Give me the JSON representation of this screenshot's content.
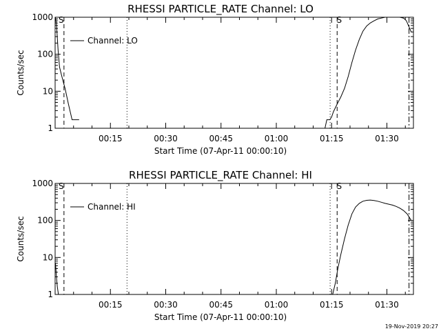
{
  "chart_data": [
    {
      "type": "line",
      "title": "RHESSI PARTICLE_RATE Channel: LO",
      "xlabel": "Start Time (07-Apr-11 00:00:10)",
      "ylabel": "Counts/sec",
      "y_scale": "log",
      "ylim": [
        1,
        1000
      ],
      "xlim_minutes": [
        0,
        97.2
      ],
      "x_tick_labels": [
        "00:15",
        "00:30",
        "00:45",
        "01:00",
        "01:15",
        "01:30"
      ],
      "x_tick_values_minutes": [
        15,
        30,
        45,
        60,
        75,
        90
      ],
      "y_tick_labels": [
        "1",
        "10",
        "100",
        "1000"
      ],
      "y_tick_values": [
        1,
        10,
        100,
        1000
      ],
      "legend": {
        "label": "Channel: LO",
        "placement": "top-left"
      },
      "marker_label": "S",
      "series": [
        {
          "values_time_minutes": [
            0.1,
            0.4,
            0.8,
            1.2,
            1.7,
            2.2,
            2.7,
            3.2,
            3.6,
            4.2,
            4.6,
            5.0,
            5.5,
            6.5
          ],
          "values_counts": [
            1000,
            600,
            130,
            45,
            28,
            18,
            12,
            7,
            4.5,
            2.5,
            1.7,
            1.7,
            1.7,
            1.7
          ]
        },
        {
          "values_time_minutes": [
            71.7,
            73.2,
            73.7,
            74.0,
            74.5,
            75.0,
            75.5,
            76.5,
            77.5,
            78.5,
            79.5,
            80.5,
            81.5,
            82.5,
            83.5,
            84.5,
            85.5,
            86.5,
            87.5,
            88.5,
            89.5,
            90.5,
            91.5,
            92.5,
            93.5,
            94.5,
            95.3,
            96.6
          ],
          "values_counts": [
            1.0,
            1.0,
            1.7,
            1.7,
            1.7,
            2.0,
            2.8,
            4.5,
            7.0,
            12,
            25,
            60,
            130,
            250,
            420,
            580,
            700,
            800,
            900,
            950,
            1000,
            1000,
            1000,
            1000,
            1000,
            950,
            800,
            400
          ]
        }
      ],
      "vlines": [
        {
          "time_minutes": 2.4,
          "style": "dashed"
        },
        {
          "time_minutes": 19.5,
          "style": "dotted"
        },
        {
          "time_minutes": 74.6,
          "style": "dotted"
        },
        {
          "time_minutes": 76.5,
          "style": "dashed"
        },
        {
          "time_minutes": 96.0,
          "style": "dashdot"
        }
      ]
    },
    {
      "type": "line",
      "title": "RHESSI PARTICLE_RATE Channel: HI",
      "xlabel": "Start Time (07-Apr-11 00:00:10)",
      "ylabel": "Counts/sec",
      "y_scale": "log",
      "ylim": [
        1,
        1000
      ],
      "xlim_minutes": [
        0,
        97.2
      ],
      "x_tick_labels": [
        "00:15",
        "00:30",
        "00:45",
        "01:00",
        "01:15",
        "01:30"
      ],
      "x_tick_values_minutes": [
        15,
        30,
        45,
        60,
        75,
        90
      ],
      "y_tick_labels": [
        "1",
        "10",
        "100",
        "1000"
      ],
      "y_tick_values": [
        1,
        10,
        100,
        1000
      ],
      "legend": {
        "label": "Channel: HI",
        "placement": "top-left"
      },
      "marker_label": "S",
      "series": [
        {
          "values_time_minutes": [
            0.1,
            0.35,
            0.6,
            0.9
          ],
          "values_counts": [
            7,
            3,
            1.6,
            1.0
          ]
        },
        {
          "values_time_minutes": [
            75.3,
            76.0,
            76.7,
            77.5,
            78.5,
            79.5,
            80.5,
            81.5,
            82.5,
            83.5,
            84.5,
            85.5,
            86.5,
            87.5,
            88.5,
            89.5,
            90.5,
            91.5,
            92.5,
            93.5,
            94.5,
            95.5,
            96.6
          ],
          "values_counts": [
            1.0,
            2.0,
            5.0,
            12,
            32,
            75,
            150,
            230,
            290,
            330,
            350,
            355,
            345,
            330,
            310,
            290,
            275,
            260,
            240,
            215,
            185,
            150,
            100
          ]
        }
      ],
      "vlines": [
        {
          "time_minutes": 2.4,
          "style": "dashed"
        },
        {
          "time_minutes": 19.5,
          "style": "dotted"
        },
        {
          "time_minutes": 74.6,
          "style": "dotted"
        },
        {
          "time_minutes": 76.5,
          "style": "dashed"
        },
        {
          "time_minutes": 96.0,
          "style": "dashdot"
        }
      ]
    }
  ],
  "footer": {
    "date_stamp": "19-Nov-2019 20:27"
  }
}
